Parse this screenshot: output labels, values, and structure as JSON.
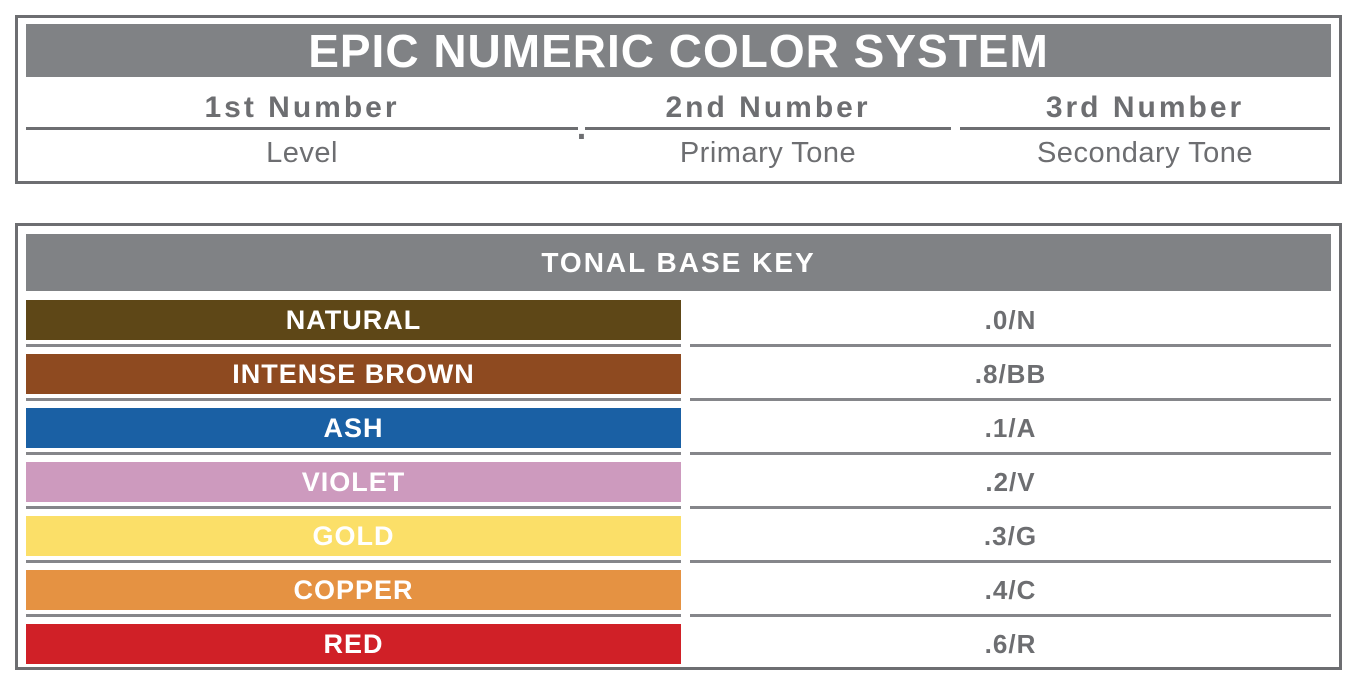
{
  "colors": {
    "panel_border": "#6d6e71",
    "panel_header_bg": "#808285",
    "text_gray": "#6d6e71",
    "divider": "#85868a",
    "header_text": "#ffffff"
  },
  "top_panel": {
    "title": "EPIC NUMERIC COLOR SYSTEM",
    "separator_dot": ".",
    "columns": [
      {
        "number": "1st Number",
        "meaning": "Level"
      },
      {
        "number": "2nd Number",
        "meaning": "Primary Tone"
      },
      {
        "number": "3rd Number",
        "meaning": "Secondary Tone"
      }
    ]
  },
  "tonal_key_panel": {
    "title": "TONAL BASE KEY",
    "rows": [
      {
        "name": "NATURAL",
        "code": ".0/N",
        "color": "#5e4717"
      },
      {
        "name": "INTENSE BROWN",
        "code": ".8/BB",
        "color": "#8e4a20"
      },
      {
        "name": "ASH",
        "code": ".1/A",
        "color": "#1a60a4"
      },
      {
        "name": "VIOLET",
        "code": ".2/V",
        "color": "#cd9abe"
      },
      {
        "name": "GOLD",
        "code": ".3/G",
        "color": "#fbdf68"
      },
      {
        "name": "COPPER",
        "code": ".4/C",
        "color": "#e59242"
      },
      {
        "name": "RED",
        "code": ".6/R",
        "color": "#d02027"
      }
    ]
  }
}
